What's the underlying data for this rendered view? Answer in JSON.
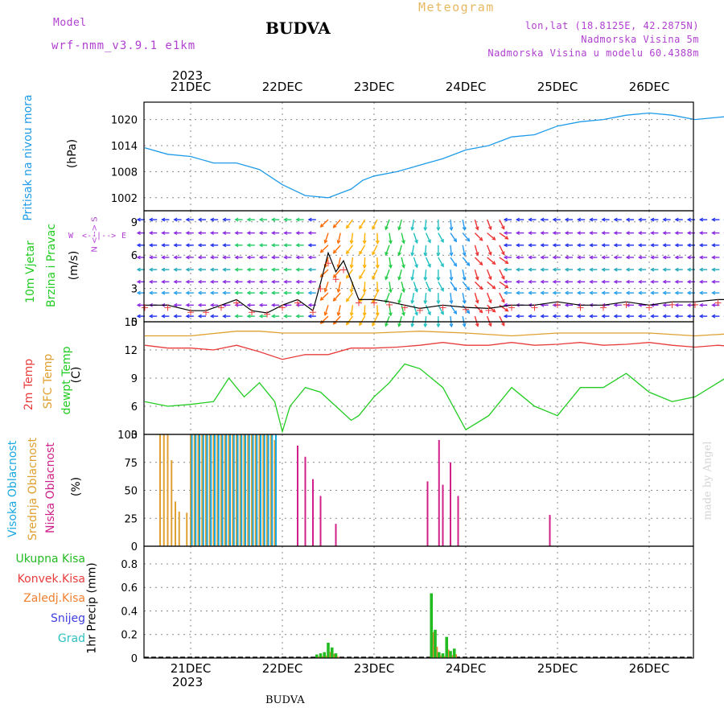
{
  "header": {
    "model_label": "Model",
    "model_name": "wrf-nmm_v3.9.1 e1km",
    "title": "BUDVA",
    "subtitle": "Meteogram",
    "lonlat": "lon,lat (18.8125E, 42.2875N)",
    "elevation": "Nadmorska Visina 5m",
    "model_elevation": "Nadmorska Visina u modelu 60.4388m",
    "watermark": "made by Angel",
    "footer": "BUDVA"
  },
  "time_axis": {
    "year": "2023",
    "days": [
      "21DEC",
      "22DEC",
      "23DEC",
      "24DEC",
      "25DEC",
      "26DEC"
    ]
  },
  "panels": {
    "pressure": {
      "label": "Pritisak na nivou mora",
      "unit": "(hPa)"
    },
    "wind": {
      "label1": "10m Vjetar",
      "label2": "Brzina i Pravac",
      "unit": "(m/s)",
      "compass_ns": "N <--> S",
      "compass_w": "W",
      "compass_e": "E",
      "compass_arrows": "<--|-->"
    },
    "temp": {
      "label1": "2m Temp",
      "label2": "SFC Temp",
      "label3": "dewpt Temp",
      "unit": "(C)"
    },
    "cloud": {
      "label1": "Visoka Oblacnost",
      "label2": "Srednja Oblacnost",
      "label3": "Niska Oblacnost",
      "unit": "(%)"
    },
    "precip": {
      "legend": [
        "Ukupna Kisa",
        "Konvek.Kisa",
        "Zaledj.Kisa",
        "Snijeg",
        "Grad"
      ],
      "unit": "1hr Precip (mm)"
    }
  },
  "colors": {
    "pressure": "#1e9be8",
    "temp2m": "#e83c3c",
    "sfc": "#e0a030",
    "dewpt": "#22cc22",
    "high_cloud": "#19a8e0",
    "mid_cloud": "#e0a030",
    "low_cloud": "#d0208a",
    "total_rain": "#22bb22",
    "conv_rain": "#e83c3c",
    "frz_rain": "#f08030",
    "snow": "#4040e0",
    "hail": "#30c0c0",
    "purple": "#b040d0"
  },
  "chart_data": [
    {
      "type": "line",
      "title": "Pritisak na nivou mora",
      "ylabel": "(hPa)",
      "ylim": [
        999,
        1024
      ],
      "yticks": [
        1002,
        1008,
        1014,
        1020
      ],
      "x_unit": "hours since 21DEC 00",
      "series": [
        {
          "x": [
            -12,
            -6,
            0,
            6,
            12,
            18,
            24,
            30,
            36,
            42,
            45,
            48,
            54,
            60,
            66,
            72,
            78,
            84,
            90,
            96,
            102,
            108,
            114,
            120,
            126,
            132,
            138,
            144,
            150,
            155,
            158
          ],
          "values": [
            1013.5,
            1012,
            1011.5,
            1010,
            1010,
            1008.5,
            1005,
            1002.5,
            1002,
            1004,
            1006,
            1007,
            1008,
            1009.5,
            1011,
            1013,
            1014,
            1016,
            1016.5,
            1018.5,
            1019.5,
            1020,
            1021,
            1021.5,
            1021,
            1020,
            1020.5,
            1021,
            1020.5,
            1021.5,
            1021
          ]
        }
      ]
    },
    {
      "type": "line",
      "title": "10m Vjetar Brzina i Pravac",
      "ylabel": "(m/s)",
      "ylim": [
        0,
        10
      ],
      "yticks": [
        0,
        3,
        6,
        9
      ],
      "series": [
        {
          "name": "speed",
          "x": [
            -12,
            -6,
            0,
            4,
            8,
            12,
            16,
            20,
            24,
            28,
            32,
            34,
            36,
            38,
            40,
            44,
            48,
            52,
            56,
            60,
            66,
            72,
            78,
            84,
            90,
            96,
            102,
            108,
            114,
            120,
            126,
            132,
            138,
            144,
            150,
            155,
            158
          ],
          "values": [
            1.5,
            1.5,
            1,
            1,
            1.5,
            2,
            1,
            0.8,
            1.5,
            2,
            1,
            3.5,
            6.2,
            4.5,
            5.5,
            2,
            2,
            1.8,
            1.5,
            1.2,
            1.5,
            1.3,
            1.2,
            1.5,
            1.5,
            1.8,
            1.5,
            1.5,
            1.8,
            1.5,
            1.8,
            1.8,
            2,
            2,
            2.2,
            2.5,
            2.5
          ]
        }
      ]
    },
    {
      "type": "line",
      "title": "Temperatures",
      "ylabel": "(C)",
      "ylim": [
        3,
        15
      ],
      "yticks": [
        3,
        6,
        9,
        12,
        15
      ],
      "series": [
        {
          "name": "SFC Temp",
          "x": [
            -12,
            0,
            12,
            18,
            24,
            36,
            48,
            60,
            72,
            84,
            96,
            108,
            120,
            132,
            144,
            155,
            158
          ],
          "values": [
            13.5,
            13.5,
            14,
            14,
            13.8,
            13.8,
            13.8,
            14,
            13.8,
            13.5,
            13.8,
            13.8,
            13.8,
            13.5,
            13.8,
            14,
            13.8
          ]
        },
        {
          "name": "2m Temp",
          "x": [
            -12,
            -6,
            0,
            6,
            12,
            18,
            24,
            30,
            36,
            42,
            48,
            54,
            60,
            66,
            72,
            78,
            84,
            90,
            96,
            102,
            108,
            114,
            120,
            126,
            132,
            138,
            144,
            150,
            155,
            158
          ],
          "values": [
            12.5,
            12.2,
            12.2,
            12,
            12.5,
            11.8,
            11,
            11.5,
            11.5,
            12.2,
            12.2,
            12.3,
            12.5,
            12.8,
            12.5,
            12.5,
            12.8,
            12.5,
            12.6,
            12.8,
            12.5,
            12.6,
            12.8,
            12.5,
            12.3,
            12.5,
            12.3,
            12.8,
            12.5,
            11.5
          ]
        },
        {
          "name": "dewpt Temp",
          "x": [
            -12,
            -6,
            0,
            6,
            10,
            14,
            18,
            22,
            24,
            26,
            30,
            34,
            38,
            42,
            44,
            48,
            52,
            56,
            60,
            66,
            72,
            78,
            84,
            90,
            96,
            102,
            108,
            114,
            120,
            126,
            132,
            138,
            144,
            150,
            155,
            158
          ],
          "values": [
            6.5,
            6,
            6.2,
            6.5,
            9,
            7,
            8.5,
            6.5,
            3.3,
            6,
            8,
            7.5,
            6,
            4.5,
            5,
            7,
            8.5,
            10.5,
            10,
            8,
            3.5,
            5,
            8,
            6,
            5,
            8,
            8,
            9.5,
            7.5,
            6.5,
            7,
            8.5,
            10,
            8.5,
            5.5,
            9.5
          ]
        }
      ]
    },
    {
      "type": "bar",
      "title": "Oblacnost",
      "ylabel": "(%)",
      "ylim": [
        0,
        100
      ],
      "yticks": [
        0,
        25,
        50,
        75,
        100
      ],
      "series": [
        {
          "name": "Srednja Oblacnost",
          "x": [
            -8,
            -7,
            -6,
            -5,
            -4,
            -3,
            -2,
            -1,
            0,
            1,
            2,
            3,
            4,
            5,
            6,
            7,
            8,
            9,
            10,
            11,
            12,
            13,
            14,
            15,
            16,
            17,
            18,
            19,
            20,
            21,
            22
          ],
          "values": [
            100,
            100,
            100,
            77,
            40,
            31,
            0,
            30,
            100,
            100,
            100,
            100,
            100,
            100,
            100,
            100,
            100,
            100,
            100,
            100,
            100,
            100,
            100,
            100,
            100,
            100,
            100,
            100,
            100,
            100,
            95
          ]
        },
        {
          "name": "Visoka Oblacnost",
          "x": [
            0,
            1,
            2,
            3,
            4,
            5,
            6,
            7,
            8,
            9,
            10,
            11,
            12,
            13,
            14,
            15,
            16,
            17,
            18,
            19,
            20,
            21,
            22
          ],
          "values": [
            100,
            100,
            100,
            100,
            100,
            100,
            100,
            100,
            100,
            100,
            100,
            100,
            100,
            100,
            100,
            100,
            100,
            100,
            100,
            100,
            100,
            100,
            100
          ]
        },
        {
          "name": "Niska Oblacnost",
          "x": [
            28,
            30,
            32,
            34,
            38,
            62,
            65,
            66,
            68,
            70,
            94,
            170
          ],
          "values": [
            90,
            80,
            60,
            45,
            20,
            58,
            95,
            55,
            75,
            45,
            28,
            75
          ]
        }
      ]
    },
    {
      "type": "bar",
      "title": "1hr Precip",
      "ylabel": "1hr Precip (mm)",
      "ylim": [
        0,
        0.95
      ],
      "yticks": [
        0,
        0.2,
        0.4,
        0.6,
        0.8
      ],
      "series": [
        {
          "name": "Ukupna Kisa",
          "x": [
            33,
            34,
            35,
            36,
            37,
            38,
            63,
            64,
            65,
            66,
            67,
            68,
            69
          ],
          "values": [
            0.03,
            0.04,
            0.05,
            0.13,
            0.09,
            0.04,
            0.55,
            0.24,
            0.05,
            0.04,
            0.18,
            0.06,
            0.08
          ]
        },
        {
          "name": "Ukupna Kisa (26DEC)",
          "x": [
            155,
            156,
            157
          ],
          "values": [
            0.04,
            0.07,
            0.54
          ]
        }
      ]
    }
  ]
}
